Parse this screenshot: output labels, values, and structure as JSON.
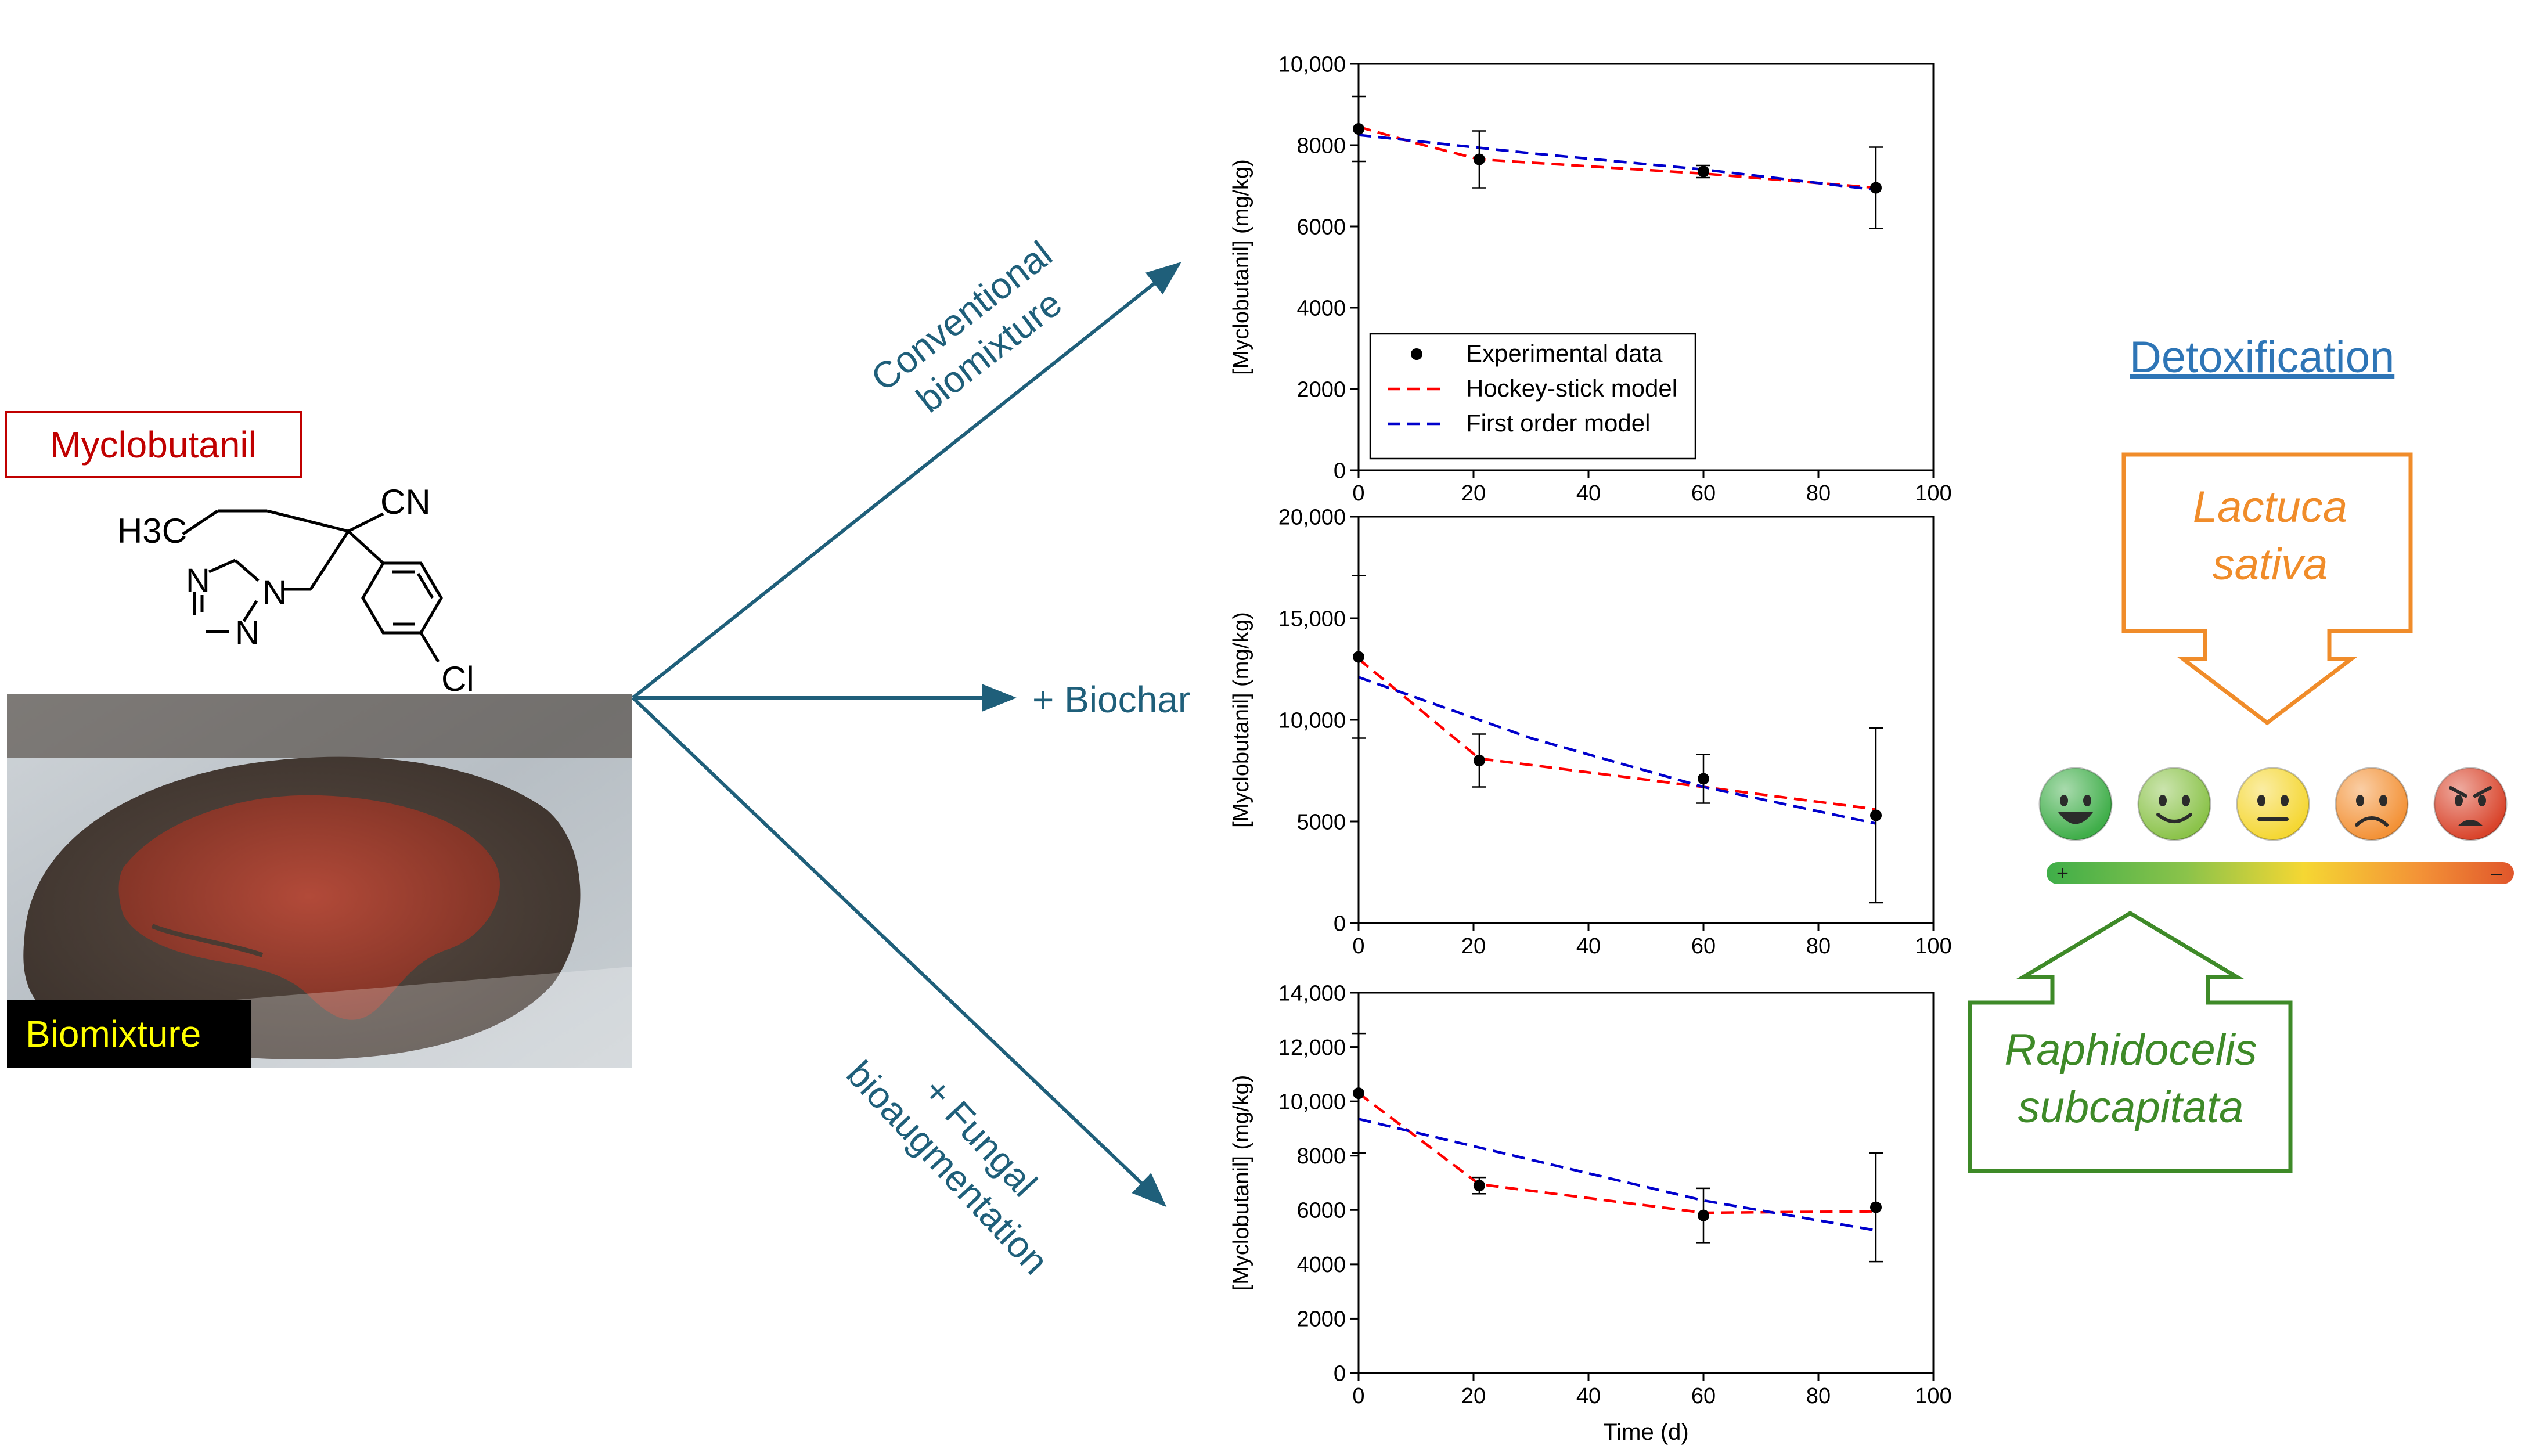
{
  "compound": {
    "name": "Myclobutanil",
    "name_color": "#c00000",
    "atoms": {
      "ch3": "H3C",
      "cn": "CN",
      "n1": "N",
      "n2": "N",
      "n3": "N",
      "cl": "Cl"
    }
  },
  "photo": {
    "caption": "Biomixture",
    "caption_color": "#ffff00"
  },
  "treatments": {
    "arrow_color": "#1f5f7a",
    "conventional": {
      "line1": "Conventional",
      "line2": "biomixture"
    },
    "biochar": {
      "label": "+ Biochar"
    },
    "fungal": {
      "line1": "+ Fungal",
      "line2": "bioaugmentation"
    }
  },
  "chart_data": [
    {
      "type": "line",
      "id": "conventional",
      "ylabel": "[Myclobutanil] (mg/kg)",
      "xlabel": "",
      "xlim": [
        0,
        100
      ],
      "ylim": [
        0,
        10000
      ],
      "xticks": [
        "0",
        "20",
        "40",
        "60",
        "80",
        "100"
      ],
      "yticks": [
        "0",
        "2000",
        "4000",
        "6000",
        "8000",
        "10,000"
      ],
      "ytick_values": [
        0,
        2000,
        4000,
        6000,
        8000,
        10000
      ],
      "points": {
        "name": "Experimental data",
        "x": [
          0,
          21,
          60,
          90
        ],
        "y": [
          8400,
          7650,
          7350,
          6950
        ],
        "err": [
          800,
          700,
          150,
          1000
        ]
      },
      "series": [
        {
          "name": "Hockey-stick model",
          "color": "#ff0000",
          "x": [
            0,
            10,
            21,
            60,
            90
          ],
          "y": [
            8450,
            8050,
            7650,
            7300,
            6950
          ]
        },
        {
          "name": "First order model",
          "color": "#0000cc",
          "x": [
            0,
            30,
            60,
            90
          ],
          "y": [
            8250,
            7800,
            7400,
            6900
          ]
        }
      ],
      "legend": {
        "position": "lower-left",
        "items": [
          "Experimental data",
          "Hockey-stick model",
          "First order model"
        ]
      }
    },
    {
      "type": "line",
      "id": "biochar",
      "ylabel": "[Myclobutanil] (mg/kg)",
      "xlabel": "",
      "xlim": [
        0,
        100
      ],
      "ylim": [
        0,
        20000
      ],
      "xticks": [
        "0",
        "20",
        "40",
        "60",
        "80",
        "100"
      ],
      "yticks": [
        "0",
        "5000",
        "10,000",
        "15,000",
        "20,000"
      ],
      "ytick_values": [
        0,
        5000,
        10000,
        15000,
        20000
      ],
      "points": {
        "name": "Experimental data",
        "x": [
          0,
          21,
          60,
          90
        ],
        "y": [
          13100,
          8000,
          7100,
          5300
        ],
        "err": [
          4000,
          1300,
          1200,
          4300
        ]
      },
      "series": [
        {
          "name": "Hockey-stick model",
          "color": "#ff0000",
          "x": [
            0,
            21,
            60,
            90
          ],
          "y": [
            13000,
            8100,
            6700,
            5600
          ]
        },
        {
          "name": "First order model",
          "color": "#0000cc",
          "x": [
            0,
            30,
            60,
            90
          ],
          "y": [
            12100,
            9100,
            6700,
            4900
          ]
        }
      ]
    },
    {
      "type": "line",
      "id": "fungal",
      "ylabel": "[Myclobutanil] (mg/kg)",
      "xlabel": "Time (d)",
      "xlim": [
        0,
        100
      ],
      "ylim": [
        0,
        14000
      ],
      "xticks": [
        "0",
        "20",
        "40",
        "60",
        "80",
        "100"
      ],
      "yticks": [
        "0",
        "2000",
        "4000",
        "6000",
        "8000",
        "10,000",
        "12,000",
        "14,000"
      ],
      "ytick_values": [
        0,
        2000,
        4000,
        6000,
        8000,
        10000,
        12000,
        14000
      ],
      "points": {
        "name": "Experimental data",
        "x": [
          0,
          21,
          60,
          90
        ],
        "y": [
          10300,
          6900,
          5800,
          6100
        ],
        "err": [
          2200,
          300,
          1000,
          2000
        ]
      },
      "series": [
        {
          "name": "Hockey-stick model",
          "color": "#ff0000",
          "x": [
            0,
            21,
            60,
            90
          ],
          "y": [
            10300,
            6950,
            5900,
            5950
          ]
        },
        {
          "name": "First order model",
          "color": "#0000cc",
          "x": [
            0,
            30,
            60,
            90
          ],
          "y": [
            9350,
            7850,
            6350,
            5250
          ]
        }
      ]
    }
  ],
  "detox": {
    "title": "Detoxification",
    "title_color": "#2e75b6",
    "plant": {
      "line1": "Lactuca",
      "line2": "sativa",
      "color": "#f08c2a"
    },
    "alga": {
      "line1": "Raphidocelis",
      "line2": "subcapitata",
      "color": "#3e8a28"
    },
    "scale": {
      "plus": "+",
      "minus": "–"
    },
    "faces": [
      {
        "icon": "grinning-face-icon",
        "color": "#3fae49"
      },
      {
        "icon": "smiling-face-icon",
        "color": "#8bc34a"
      },
      {
        "icon": "neutral-face-icon",
        "color": "#f5d733"
      },
      {
        "icon": "frowning-face-icon",
        "color": "#f39237"
      },
      {
        "icon": "angry-face-icon",
        "color": "#d9442b"
      }
    ]
  }
}
